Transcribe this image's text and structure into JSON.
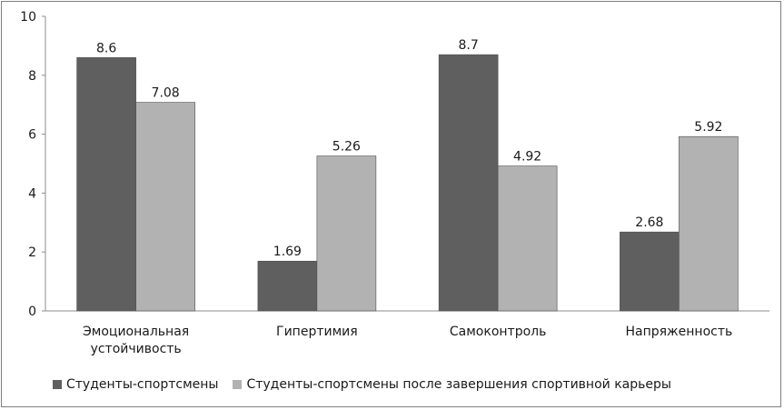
{
  "chart_data": {
    "type": "bar",
    "categories": [
      "Эмоциональная устойчивость",
      "Гипертимия",
      "Самоконтроль",
      "Напряженность"
    ],
    "category_lines": [
      [
        "Эмоциональная",
        "устойчивость"
      ],
      [
        "Гипертимия"
      ],
      [
        "Самоконтроль"
      ],
      [
        "Напряженность"
      ]
    ],
    "series": [
      {
        "name": "Студенты-спортсмены",
        "values": [
          8.6,
          1.69,
          8.7,
          2.68
        ],
        "labels": [
          "8.6",
          "1.69",
          "8.7",
          "2.68"
        ],
        "color": "#5f5f5f"
      },
      {
        "name": "Студенты-спортсмены после завершения спортивной карьеры",
        "values": [
          7.08,
          5.26,
          4.92,
          5.92
        ],
        "labels": [
          "7.08",
          "5.26",
          "4.92",
          "5.92"
        ],
        "color": "#b2b2b2"
      }
    ],
    "yticks": [
      "0",
      "2",
      "4",
      "6",
      "8",
      "10"
    ],
    "ylim": [
      0,
      10
    ],
    "grid": false,
    "legend_position": "bottom"
  }
}
